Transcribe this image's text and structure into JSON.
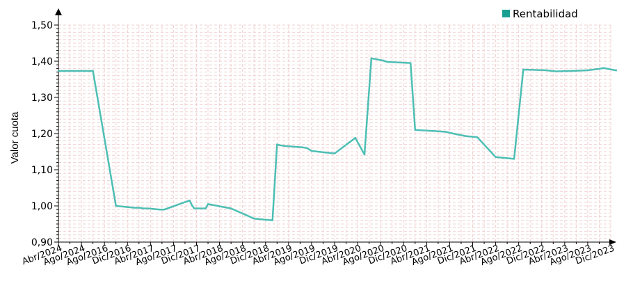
{
  "chart_data": {
    "type": "line",
    "title": "",
    "xlabel": "",
    "ylabel": "Valor cuota",
    "ylim": [
      0.9,
      1.5
    ],
    "y_ticks": [
      "0,90",
      "1,00",
      "1,10",
      "1,20",
      "1,30",
      "1,40",
      "1,50"
    ],
    "x_tick_labels": [
      "Abr/2024",
      "Ago/2024",
      "Ago/2016",
      "Dic/2016",
      "Abr/2017",
      "Ago/2017",
      "Dic/2017",
      "Abr/2018",
      "Ago/2018",
      "Dic/2018",
      "Abr/2019",
      "Ago/2019",
      "Dic/2019",
      "Abr/2020",
      "Ago/2020",
      "Dic/2020",
      "Abr/2021",
      "Ago/2021",
      "Dic/2021",
      "Abr/2022",
      "Ago/2022",
      "Dic/2022",
      "Abr/2023",
      "Ago/2023",
      "Dic/2023"
    ],
    "grid": true,
    "legend": {
      "position": "top-right"
    },
    "series": [
      {
        "name": "Rentabilidad",
        "color": "#4dbfb4",
        "x": [
          0,
          0.2,
          0.4,
          0.7,
          1.15,
          1.3,
          1.5,
          2.5,
          3.3,
          3.5,
          3.7,
          3.9,
          4.1,
          4.4,
          4.6,
          5.7,
          5.8,
          5.9,
          6.4,
          6.5,
          7.5,
          8.5,
          9.3,
          9.5,
          9.6,
          9.8,
          10.6,
          10.8,
          11.0,
          12.0,
          12.9,
          13.3,
          13.6,
          14.1,
          14.3,
          15.3,
          15.5,
          16.8,
          17.3,
          17.7,
          18.2,
          19.0,
          19.8,
          20.2,
          21.2,
          21.6,
          22.3,
          23.0,
          23.4,
          23.7,
          24.2,
          25.0
        ],
        "y": [
          1.373,
          1.373,
          1.373,
          1.373,
          1.373,
          1.373,
          1.373,
          1.0,
          0.995,
          0.995,
          0.993,
          0.993,
          0.992,
          0.99,
          0.99,
          1.015,
          1.002,
          0.993,
          0.993,
          1.005,
          0.993,
          0.965,
          0.96,
          1.17,
          1.168,
          1.166,
          1.162,
          1.16,
          1.152,
          1.145,
          1.188,
          1.142,
          1.408,
          1.402,
          1.398,
          1.395,
          1.21,
          1.205,
          1.198,
          1.193,
          1.19,
          1.135,
          1.13,
          1.377,
          1.375,
          1.372,
          1.373,
          1.375,
          1.378,
          1.381,
          1.375,
          1.373
        ]
      }
    ]
  }
}
